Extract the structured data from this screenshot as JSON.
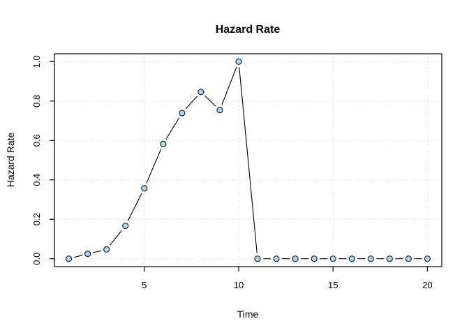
{
  "figure": {
    "background": "#ffffff"
  },
  "chart_data": {
    "type": "line",
    "title": "Hazard Rate",
    "xlabel": "Time",
    "ylabel": "Hazard Rate",
    "x": [
      1,
      2,
      3,
      4,
      5,
      6,
      7,
      8,
      9,
      10,
      11,
      12,
      13,
      14,
      15,
      16,
      17,
      18,
      19,
      20
    ],
    "y": [
      0.0,
      0.025,
      0.047,
      0.167,
      0.357,
      0.582,
      0.739,
      0.846,
      0.754,
      1.0,
      0.0,
      0.0,
      0.0,
      0.0,
      0.0,
      0.0,
      0.0,
      0.0,
      0.0,
      0.0
    ],
    "xlim": [
      1,
      20
    ],
    "ylim": [
      0,
      1
    ],
    "x_ticks": [
      5,
      10,
      15,
      20
    ],
    "x_tick_labels": [
      "5",
      "10",
      "15",
      "20"
    ],
    "y_ticks": [
      0.0,
      0.2,
      0.4,
      0.6,
      0.8,
      1.0
    ],
    "y_tick_labels": [
      "0.0",
      "0.2",
      "0.4",
      "0.6",
      "0.8",
      "1.0"
    ],
    "grid": true,
    "grid_style": "dotted",
    "legend_position": "none",
    "marker": "circle",
    "line_style": "segments-with-gaps-at-points",
    "colors": {
      "marker_fill": "#ADD8E6",
      "marker_stroke": "#222222",
      "line": "#000000",
      "grid": "#d8d8d8",
      "axis": "#000000",
      "text": "#000000"
    }
  }
}
